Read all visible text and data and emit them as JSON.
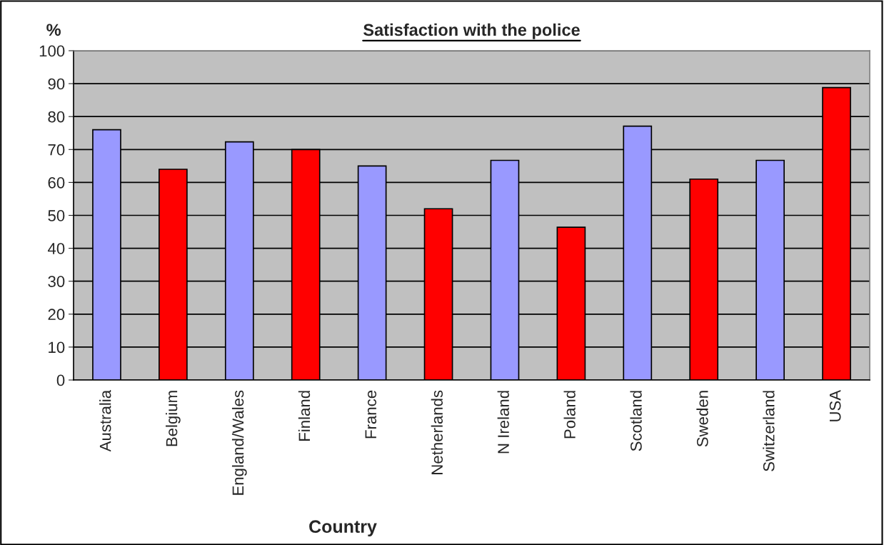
{
  "chart_data": {
    "type": "bar",
    "title": "Satisfaction with the police",
    "xlabel": "Country",
    "ylabel": "%",
    "categories": [
      "Australia",
      "Belgium",
      "England/Wales",
      "Finland",
      "France",
      "Netherlands",
      "N Ireland",
      "Poland",
      "Scotland",
      "Sweden",
      "Switzerland",
      "USA"
    ],
    "values": [
      76,
      64,
      72.3,
      70,
      65,
      52,
      66.7,
      46.4,
      77.1,
      61,
      66.7,
      88.8
    ],
    "colors": [
      "#9999ff",
      "#ff0000",
      "#9999ff",
      "#ff0000",
      "#9999ff",
      "#ff0000",
      "#9999ff",
      "#ff0000",
      "#9999ff",
      "#ff0000",
      "#9999ff",
      "#ff0000"
    ],
    "ylim": [
      0,
      100
    ],
    "yticks": [
      0,
      10,
      20,
      30,
      40,
      50,
      60,
      70,
      80,
      90,
      100
    ],
    "grid": "y",
    "legend": false
  }
}
